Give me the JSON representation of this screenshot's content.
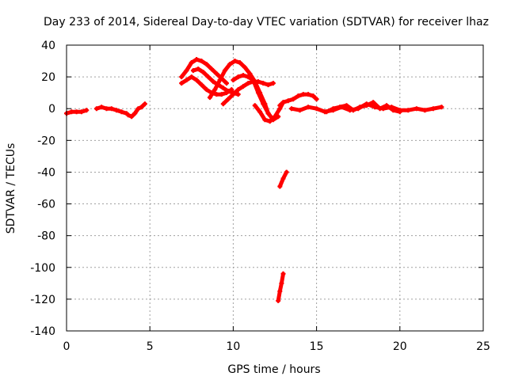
{
  "chart_data": {
    "type": "scatter",
    "title": "Day 233 of 2014, Sidereal Day-to-day VTEC variation (SDTVAR) for receiver lhaz",
    "xlabel": "GPS time / hours",
    "ylabel": "SDTVAR / TECUs",
    "xlim": [
      0,
      25
    ],
    "ylim": [
      -140,
      40
    ],
    "xticks": [
      0,
      5,
      10,
      15,
      20,
      25
    ],
    "yticks": [
      40,
      20,
      0,
      -20,
      -40,
      -60,
      -80,
      -100,
      -120,
      -140
    ],
    "grid": true,
    "marker_color": "#ff0000",
    "series": [
      {
        "name": "seg-1",
        "x": [
          0.0,
          0.3,
          0.6,
          0.9,
          1.2
        ],
        "y": [
          -3,
          -2,
          -2,
          -2,
          -1
        ]
      },
      {
        "name": "seg-2",
        "x": [
          1.8,
          2.1,
          2.4,
          2.7,
          3.0,
          3.3,
          3.6
        ],
        "y": [
          0,
          1,
          0,
          0,
          -1,
          -2,
          -3
        ]
      },
      {
        "name": "seg-3",
        "x": [
          3.7,
          3.9,
          4.1,
          4.3,
          4.5,
          4.7
        ],
        "y": [
          -4,
          -5,
          -3,
          0,
          1,
          3
        ]
      },
      {
        "name": "seg-4",
        "x": [
          6.9,
          7.2,
          7.5,
          7.8,
          8.1,
          8.4,
          8.7,
          9.0,
          9.3,
          9.6
        ],
        "y": [
          20,
          24,
          29,
          31,
          30,
          28,
          25,
          22,
          19,
          16
        ]
      },
      {
        "name": "seg-5",
        "x": [
          6.9,
          7.2,
          7.5,
          7.8,
          8.1,
          8.4,
          8.7,
          9.0,
          9.3,
          9.6,
          9.9
        ],
        "y": [
          16,
          18,
          20,
          18,
          15,
          12,
          10,
          9,
          9,
          10,
          12
        ]
      },
      {
        "name": "seg-6",
        "x": [
          7.6,
          7.9,
          8.2,
          8.5,
          8.8,
          9.1,
          9.4,
          9.7,
          10.0,
          10.3
        ],
        "y": [
          24,
          25,
          23,
          20,
          17,
          15,
          13,
          11,
          10,
          9
        ]
      },
      {
        "name": "seg-7",
        "x": [
          8.6,
          8.9,
          9.2,
          9.5,
          9.8,
          10.1,
          10.4,
          10.7,
          11.0,
          11.3,
          11.6,
          11.9,
          12.1
        ],
        "y": [
          7,
          12,
          18,
          24,
          28,
          30,
          29,
          26,
          22,
          17,
          10,
          3,
          -3
        ]
      },
      {
        "name": "seg-8",
        "x": [
          9.4,
          9.7,
          10.0,
          10.3,
          10.6,
          10.9,
          11.2,
          11.5,
          11.8,
          12.1,
          12.4
        ],
        "y": [
          3,
          6,
          9,
          12,
          14,
          16,
          17,
          17,
          16,
          15,
          16
        ]
      },
      {
        "name": "seg-9",
        "x": [
          10.0,
          10.3,
          10.6,
          10.9,
          11.2,
          11.5,
          11.8,
          12.1,
          12.4,
          12.7
        ],
        "y": [
          18,
          20,
          21,
          20,
          18,
          10,
          3,
          -3,
          -7,
          -5
        ]
      },
      {
        "name": "seg-10",
        "x": [
          11.3,
          11.6,
          11.9,
          12.2,
          12.5,
          12.8,
          13.0
        ],
        "y": [
          2,
          -2,
          -7,
          -8,
          -5,
          0,
          4
        ]
      },
      {
        "name": "seg-11",
        "x": [
          12.8,
          13.0,
          13.3,
          13.6,
          13.9,
          14.2,
          14.5,
          14.8,
          15.0
        ],
        "y": [
          2,
          4,
          5,
          6,
          8,
          9,
          9,
          8,
          6
        ]
      },
      {
        "name": "seg-12",
        "x": [
          12.8,
          13.0,
          13.2
        ],
        "y": [
          -49,
          -44,
          -40
        ]
      },
      {
        "name": "seg-13",
        "x": [
          12.7,
          12.8,
          12.9,
          13.0
        ],
        "y": [
          -121,
          -115,
          -110,
          -104
        ]
      },
      {
        "name": "seg-14",
        "x": [
          13.5,
          14.0,
          14.5,
          15.0,
          15.5,
          16.0,
          16.5,
          17.0,
          17.5,
          18.0,
          18.5,
          19.0,
          19.5,
          20.0,
          20.5,
          21.0,
          21.5,
          22.0,
          22.5
        ],
        "y": [
          0,
          -1,
          1,
          0,
          -2,
          -1,
          1,
          -1,
          0,
          3,
          1,
          0,
          1,
          -1,
          -1,
          0,
          -1,
          0,
          1
        ]
      },
      {
        "name": "seg-15",
        "x": [
          15.6,
          16.0,
          16.4,
          16.8,
          17.2,
          17.6,
          18.0,
          18.4,
          18.8,
          19.2,
          19.6,
          20.0
        ],
        "y": [
          -2,
          0,
          1,
          2,
          -1,
          1,
          2,
          4,
          0,
          2,
          -1,
          -2
        ]
      }
    ]
  }
}
